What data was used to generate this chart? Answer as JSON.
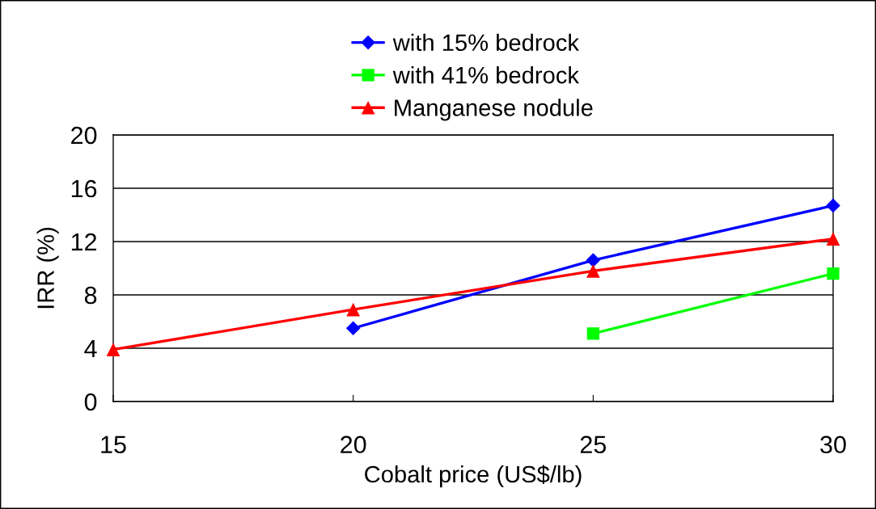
{
  "chart_data": {
    "type": "line",
    "xlabel": "Cobalt price (US$/lb)",
    "ylabel": "IRR (%)",
    "series": [
      {
        "name": "with 15% bedrock",
        "color": "#0000ff",
        "marker": "diamond",
        "x": [
          20,
          25,
          30
        ],
        "values": [
          5.5,
          10.6,
          14.7
        ]
      },
      {
        "name": "with 41% bedrock",
        "color": "#00ff00",
        "marker": "square",
        "x": [
          25,
          30
        ],
        "values": [
          5.1,
          9.6
        ]
      },
      {
        "name": "Manganese nodule",
        "color": "#ff0000",
        "marker": "triangle",
        "x": [
          15,
          20,
          25,
          30
        ],
        "values": [
          3.9,
          6.9,
          9.8,
          12.2
        ]
      }
    ],
    "xlim": [
      15,
      30
    ],
    "xticks": [
      15,
      20,
      25,
      30
    ],
    "ylim": [
      0,
      20
    ],
    "yticks": [
      0,
      4,
      8,
      12,
      16,
      20
    ],
    "grid": "y",
    "legend": "top",
    "line_style": "solid"
  }
}
